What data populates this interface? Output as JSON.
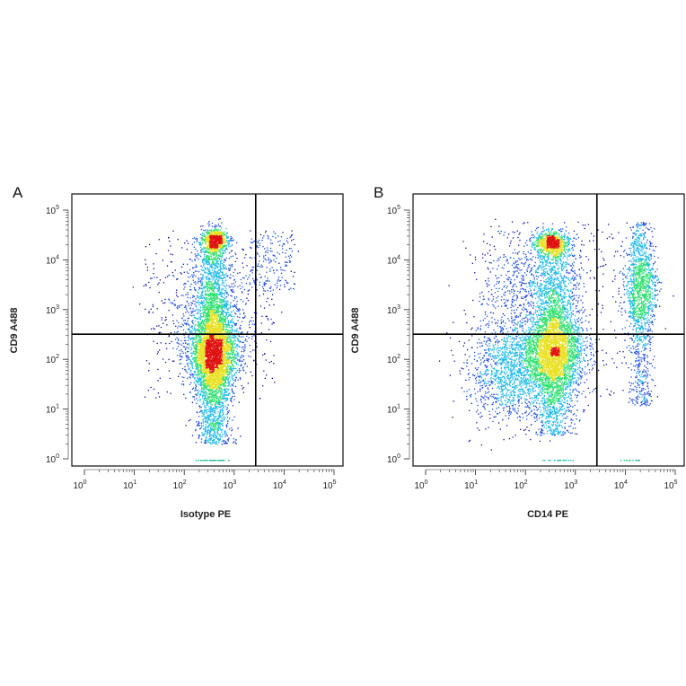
{
  "chart_data": [
    {
      "type": "scatter",
      "plot_kind": "flow-cytometry-density-dot-plot",
      "panel_label": "A",
      "xlabel": "Isotype PE",
      "ylabel": "CD9 A488",
      "x_scale": "log",
      "y_scale": "log",
      "xlim": [
        1,
        100000
      ],
      "ylim": [
        1,
        100000
      ],
      "x_tick_values": [
        1,
        10,
        100,
        1000,
        10000,
        100000
      ],
      "y_tick_values": [
        1,
        10,
        100,
        1000,
        10000,
        100000
      ],
      "tick_labels": [
        {
          "base": "10",
          "exp": "0"
        },
        {
          "base": "10",
          "exp": "1"
        },
        {
          "base": "10",
          "exp": "2"
        },
        {
          "base": "10",
          "exp": "3"
        },
        {
          "base": "10",
          "exp": "4"
        },
        {
          "base": "10",
          "exp": "5"
        }
      ],
      "quadrant_gate": {
        "x": 2700,
        "y": 320
      },
      "density_colormap": [
        "#0a0aa0",
        "#1848e0",
        "#18b8e8",
        "#30e070",
        "#e8e020",
        "#e01010"
      ],
      "populations": [
        {
          "x_center": 380,
          "x_spread_log": 0.17,
          "y_min": 1,
          "y_max": 30000,
          "density_peak_y": 130,
          "events": "high"
        },
        {
          "x_center": 400,
          "y_center": 28000,
          "note": "bright hotspot"
        }
      ],
      "grid": false,
      "legend": "none"
    },
    {
      "type": "scatter",
      "plot_kind": "flow-cytometry-density-dot-plot",
      "panel_label": "B",
      "xlabel": "CD14 PE",
      "ylabel": "CD9 A488",
      "x_scale": "log",
      "y_scale": "log",
      "xlim": [
        1,
        100000
      ],
      "ylim": [
        1,
        100000
      ],
      "x_tick_values": [
        1,
        10,
        100,
        1000,
        10000,
        100000
      ],
      "y_tick_values": [
        1,
        10,
        100,
        1000,
        10000,
        100000
      ],
      "tick_labels": [
        {
          "base": "10",
          "exp": "0"
        },
        {
          "base": "10",
          "exp": "1"
        },
        {
          "base": "10",
          "exp": "2"
        },
        {
          "base": "10",
          "exp": "3"
        },
        {
          "base": "10",
          "exp": "4"
        },
        {
          "base": "10",
          "exp": "5"
        }
      ],
      "quadrant_gate": {
        "x": 2700,
        "y": 320
      },
      "density_colormap": [
        "#0a0aa0",
        "#1848e0",
        "#18b8e8",
        "#30e070",
        "#e8e020",
        "#e01010"
      ],
      "populations": [
        {
          "x_center": 380,
          "x_spread_log": 0.2,
          "y_min": 3,
          "y_max": 30000,
          "density_peak_y": 150,
          "events": "high"
        },
        {
          "x_center": 350,
          "y_center": 22000,
          "note": "bright hotspot"
        },
        {
          "x_center": 20000,
          "x_spread_log": 0.12,
          "y_min": 10,
          "y_max": 50000,
          "density_peak_y": 2500,
          "events": "medium",
          "note": "CD14+ population"
        },
        {
          "x_center": 40,
          "x_spread_log": 0.45,
          "y_min": 5,
          "y_max": 30000,
          "events": "low",
          "note": "scattered CD14- cells"
        }
      ],
      "grid": false,
      "legend": "none"
    }
  ]
}
